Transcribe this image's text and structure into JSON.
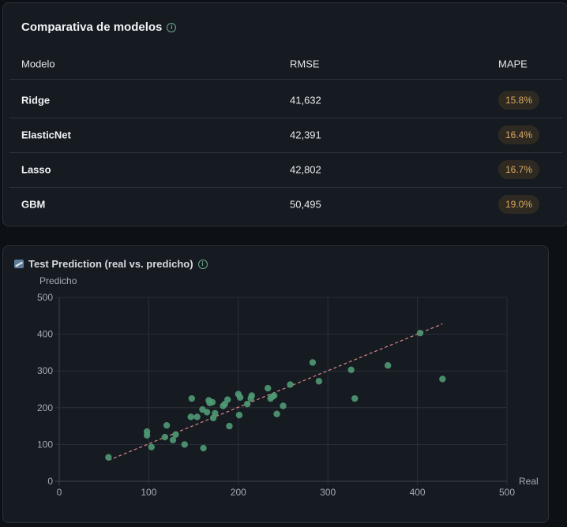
{
  "table_card": {
    "title": "Comparativa de modelos",
    "info_icon": "info-icon",
    "columns": {
      "model": "Modelo",
      "rmse": "RMSE",
      "mape": "MAPE"
    },
    "rows": [
      {
        "model": "Ridge",
        "rmse": "41,632",
        "mape": "15.8%"
      },
      {
        "model": "ElasticNet",
        "rmse": "42,391",
        "mape": "16.4%"
      },
      {
        "model": "Lasso",
        "rmse": "42,802",
        "mape": "16.7%"
      },
      {
        "model": "GBM",
        "rmse": "50,495",
        "mape": "19.0%"
      }
    ]
  },
  "chart_card": {
    "title": "Test Prediction (real vs. predicho)",
    "title_icon": "chart-increasing-icon",
    "info_icon": "info-icon"
  },
  "chart_data": {
    "type": "scatter",
    "title": "Test Prediction (real vs. predicho)",
    "xlabel": "Real",
    "ylabel": "Predicho",
    "xlim": [
      0,
      500
    ],
    "ylim": [
      0,
      500
    ],
    "xticks": [
      0,
      100,
      200,
      300,
      400,
      500
    ],
    "yticks": [
      0,
      100,
      200,
      300,
      400,
      500
    ],
    "grid": true,
    "colors": {
      "points": "#4f9a74",
      "reference_line": "#d98888"
    },
    "reference_line": {
      "style": "dashed",
      "x": [
        55,
        428
      ],
      "y": [
        57,
        428
      ]
    },
    "points": [
      [
        55,
        65
      ],
      [
        98,
        135
      ],
      [
        98,
        125
      ],
      [
        103,
        93
      ],
      [
        118,
        120
      ],
      [
        120,
        152
      ],
      [
        127,
        112
      ],
      [
        130,
        127
      ],
      [
        140,
        100
      ],
      [
        147,
        175
      ],
      [
        148,
        225
      ],
      [
        154,
        175
      ],
      [
        160,
        195
      ],
      [
        161,
        90
      ],
      [
        165,
        188
      ],
      [
        167,
        220
      ],
      [
        168,
        213
      ],
      [
        171,
        215
      ],
      [
        172,
        172
      ],
      [
        174,
        185
      ],
      [
        183,
        205
      ],
      [
        185,
        210
      ],
      [
        188,
        222
      ],
      [
        190,
        150
      ],
      [
        200,
        237
      ],
      [
        201,
        180
      ],
      [
        202,
        228
      ],
      [
        210,
        210
      ],
      [
        214,
        225
      ],
      [
        215,
        233
      ],
      [
        233,
        253
      ],
      [
        236,
        225
      ],
      [
        238,
        230
      ],
      [
        240,
        233
      ],
      [
        243,
        183
      ],
      [
        250,
        205
      ],
      [
        258,
        263
      ],
      [
        283,
        323
      ],
      [
        290,
        272
      ],
      [
        326,
        303
      ],
      [
        330,
        225
      ],
      [
        367,
        315
      ],
      [
        403,
        403
      ],
      [
        428,
        278
      ]
    ]
  }
}
